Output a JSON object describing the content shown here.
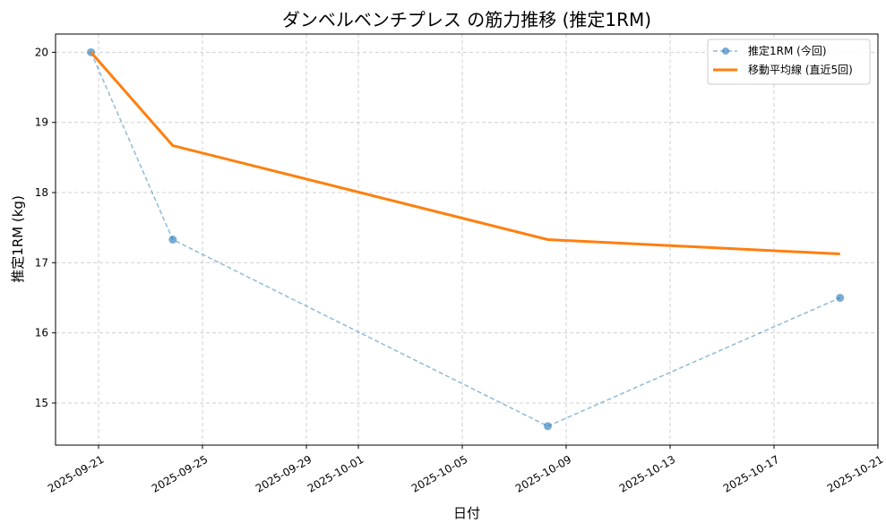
{
  "chart_data": {
    "type": "line",
    "title": "ダンベルベンチプレス の筋力推移 (推定1RM)",
    "xlabel": "日付",
    "ylabel": "推定1RM (kg)",
    "x_tick_labels": [
      "2025-09-21",
      "2025-09-25",
      "2025-09-29",
      "2025-10-01",
      "2025-10-05",
      "2025-10-09",
      "2025-10-13",
      "2025-10-17",
      "2025-10-21"
    ],
    "y_tick_labels": [
      "15",
      "16",
      "17",
      "18",
      "19",
      "20"
    ],
    "xlim": [
      "2025-09-19T08:15",
      "2025-10-21T00:00"
    ],
    "ylim": [
      14.4,
      20.26
    ],
    "grid": true,
    "legend_position": "top-right",
    "x": [
      "2025-09-20T17:00",
      "2025-09-23T20:30",
      "2025-10-08T07:00",
      "2025-10-19T13:00"
    ],
    "series": [
      {
        "name": "推定1RM (今回)",
        "style": "dashed-markers",
        "color": "#1f77b4",
        "values": [
          20.0,
          17.33,
          14.67,
          16.5
        ]
      },
      {
        "name": "移動平均線 (直近5回)",
        "style": "solid",
        "color": "#ff7f0e",
        "values": [
          20.0,
          18.67,
          17.33,
          17.125
        ]
      }
    ]
  }
}
